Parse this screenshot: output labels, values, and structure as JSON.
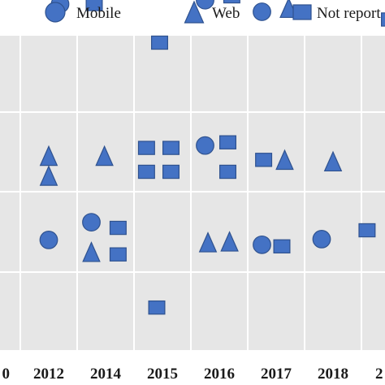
{
  "chart_data": {
    "type": "scatter",
    "categories": [
      "",
      "2012",
      "2014",
      "2015",
      "2016",
      "2017",
      "2018",
      ""
    ],
    "tick_labels": [
      "0",
      "2012",
      "2014",
      "2015",
      "2016",
      "2017",
      "2018",
      "2"
    ],
    "rows": 4,
    "legend": [
      {
        "marker": "circle",
        "label": "Mobile"
      },
      {
        "marker": "triangle",
        "label": "Web"
      },
      {
        "marker": "square",
        "label": "Not report"
      }
    ],
    "legend_position": "top",
    "grid": true,
    "colors": {
      "marker_fill": "#4472C4",
      "marker_stroke": "#2F528F",
      "cell_background": "#E6E6E6",
      "grid_line": "#FFFFFF"
    },
    "points": [
      {
        "col": 2,
        "row": 0,
        "dx": -0.3,
        "dy": -0.4,
        "marker": "circle"
      },
      {
        "col": 2,
        "row": 0,
        "dx": 0.3,
        "dy": -0.4,
        "marker": "square"
      },
      {
        "col": 3,
        "row": 0,
        "dx": 0.45,
        "dy": 0.1,
        "marker": "square"
      },
      {
        "col": 4,
        "row": 0,
        "dx": 0.25,
        "dy": -0.45,
        "marker": "circle"
      },
      {
        "col": 4,
        "row": 0,
        "dx": 0.72,
        "dy": -0.5,
        "marker": "square"
      },
      {
        "col": 5,
        "row": 0,
        "dx": 0.25,
        "dy": -0.9,
        "marker": "triangle"
      },
      {
        "col": 5,
        "row": 0,
        "dx": 0.72,
        "dy": -0.7,
        "marker": "square"
      },
      {
        "col": 5,
        "row": 0,
        "dx": 0.25,
        "dy": -0.3,
        "marker": "circle"
      },
      {
        "col": 5,
        "row": 0,
        "dx": 0.72,
        "dy": -0.35,
        "marker": "triangle"
      },
      {
        "col": 7,
        "row": 0,
        "dx": 0.2,
        "dy": -0.6,
        "marker": "circle"
      },
      {
        "col": 7,
        "row": 0,
        "dx": 0.5,
        "dy": -0.2,
        "marker": "square"
      },
      {
        "col": 0,
        "row": 1,
        "dx": 0.0,
        "dy": 0.1,
        "marker": "square"
      },
      {
        "col": 1,
        "row": 1,
        "dx": 0.5,
        "dy": 0.55,
        "marker": "triangle"
      },
      {
        "col": 1,
        "row": 1,
        "dx": 0.5,
        "dy": 0.8,
        "marker": "triangle"
      },
      {
        "col": 2,
        "row": 1,
        "dx": 0.48,
        "dy": 0.55,
        "marker": "triangle"
      },
      {
        "col": 3,
        "row": 1,
        "dx": 0.22,
        "dy": 0.45,
        "marker": "square"
      },
      {
        "col": 3,
        "row": 1,
        "dx": 0.65,
        "dy": 0.45,
        "marker": "square"
      },
      {
        "col": 3,
        "row": 1,
        "dx": 0.22,
        "dy": 0.75,
        "marker": "square"
      },
      {
        "col": 3,
        "row": 1,
        "dx": 0.65,
        "dy": 0.75,
        "marker": "square"
      },
      {
        "col": 4,
        "row": 1,
        "dx": 0.25,
        "dy": 0.42,
        "marker": "circle"
      },
      {
        "col": 4,
        "row": 1,
        "dx": 0.65,
        "dy": 0.38,
        "marker": "square"
      },
      {
        "col": 4,
        "row": 1,
        "dx": 0.65,
        "dy": 0.75,
        "marker": "square"
      },
      {
        "col": 5,
        "row": 1,
        "dx": 0.28,
        "dy": 0.6,
        "marker": "square"
      },
      {
        "col": 5,
        "row": 1,
        "dx": 0.65,
        "dy": 0.6,
        "marker": "triangle"
      },
      {
        "col": 6,
        "row": 1,
        "dx": 0.5,
        "dy": 0.62,
        "marker": "triangle"
      },
      {
        "col": 1,
        "row": 2,
        "dx": 0.5,
        "dy": 0.6,
        "marker": "circle"
      },
      {
        "col": 2,
        "row": 2,
        "dx": 0.25,
        "dy": 0.38,
        "marker": "circle"
      },
      {
        "col": 2,
        "row": 2,
        "dx": 0.72,
        "dy": 0.45,
        "marker": "square"
      },
      {
        "col": 2,
        "row": 2,
        "dx": 0.25,
        "dy": 0.75,
        "marker": "triangle"
      },
      {
        "col": 2,
        "row": 2,
        "dx": 0.72,
        "dy": 0.78,
        "marker": "square"
      },
      {
        "col": 4,
        "row": 2,
        "dx": 0.3,
        "dy": 0.63,
        "marker": "triangle"
      },
      {
        "col": 4,
        "row": 2,
        "dx": 0.68,
        "dy": 0.62,
        "marker": "triangle"
      },
      {
        "col": 5,
        "row": 2,
        "dx": 0.25,
        "dy": 0.66,
        "marker": "circle"
      },
      {
        "col": 5,
        "row": 2,
        "dx": 0.6,
        "dy": 0.68,
        "marker": "square"
      },
      {
        "col": 6,
        "row": 2,
        "dx": 0.3,
        "dy": 0.59,
        "marker": "circle"
      },
      {
        "col": 7,
        "row": 2,
        "dx": 0.1,
        "dy": 0.48,
        "marker": "square"
      },
      {
        "col": 3,
        "row": 3,
        "dx": 0.4,
        "dy": 0.45,
        "marker": "square"
      }
    ]
  }
}
